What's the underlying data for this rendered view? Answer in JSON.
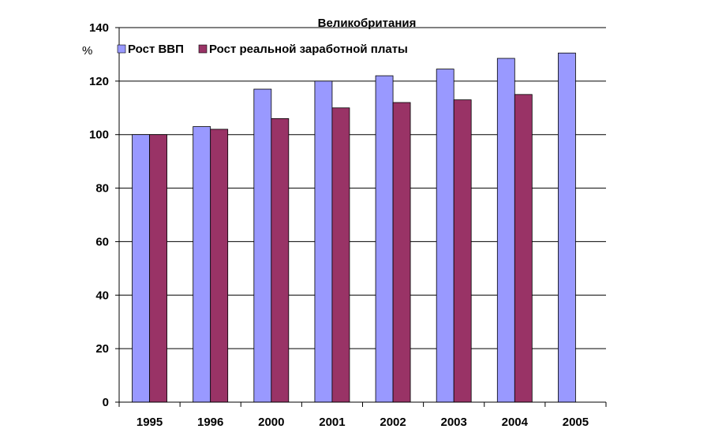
{
  "chart_data": {
    "type": "bar",
    "title": "Великобритания",
    "ylabel": "%",
    "xlabel": "",
    "categories": [
      "1995",
      "1996",
      "2000",
      "2001",
      "2002",
      "2003",
      "2004",
      "2005"
    ],
    "series": [
      {
        "name": "Рост ВВП",
        "color": "#9999ff",
        "values": [
          100,
          103,
          117,
          120,
          122,
          124.5,
          128.5,
          130.5
        ]
      },
      {
        "name": "Рост реальной заработной платы",
        "color": "#993366",
        "values": [
          100,
          102,
          106,
          110,
          112,
          113,
          115,
          null
        ]
      }
    ],
    "ylim": [
      0,
      140
    ],
    "yticks": [
      "0",
      "20",
      "40",
      "60",
      "80",
      "100",
      "120",
      "140"
    ],
    "grid": true,
    "legend_position": "top-left"
  }
}
